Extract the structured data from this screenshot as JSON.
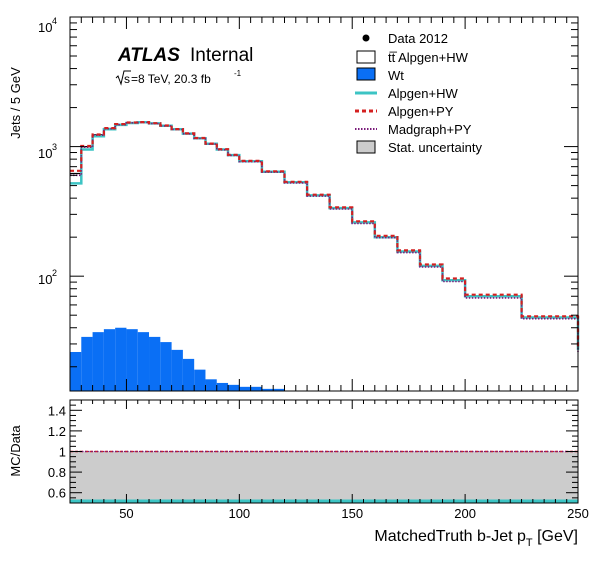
{
  "chart_data": [
    {
      "type": "histogram",
      "panel": "main",
      "ylabel": "Jets / 5 GeV",
      "xlim": [
        25,
        250
      ],
      "ylim": [
        13,
        10000
      ],
      "yscale": "log",
      "y_ticklabels": [
        "10",
        "10",
        "10"
      ],
      "y_tick_exponents": [
        "2",
        "3",
        "4"
      ],
      "x_edges": [
        25,
        30,
        35,
        40,
        45,
        50,
        55,
        60,
        65,
        70,
        75,
        80,
        85,
        90,
        95,
        100,
        110,
        120,
        130,
        140,
        150,
        160,
        170,
        180,
        190,
        200,
        225,
        250
      ],
      "annotations": {
        "atlas_label": "ATLAS",
        "atlas_status": "Internal",
        "energy_prefix": "s",
        "energy_text": "=8 TeV, 20.3 fb",
        "lumi_exponent": "-1"
      },
      "legend": {
        "placement": "top-right",
        "entries": [
          {
            "label": "Data 2012",
            "style": "marker"
          },
          {
            "label": "tt̅ Alpgen+HW",
            "style": "box-white"
          },
          {
            "label": "Wt",
            "style": "box-blue"
          },
          {
            "label": "Alpgen+HW",
            "style": "line-solid-cyan"
          },
          {
            "label": "Alpgen+PY",
            "style": "line-dashed-red"
          },
          {
            "label": "Madgraph+PY",
            "style": "line-dotted-purple"
          },
          {
            "label": "Stat. uncertainty",
            "style": "box-gray"
          }
        ]
      },
      "series": [
        {
          "name": "tt̅ Alpgen+HW",
          "color": "#000000",
          "values": [
            620,
            1000,
            1230,
            1380,
            1480,
            1530,
            1540,
            1510,
            1450,
            1360,
            1260,
            1160,
            1050,
            950,
            860,
            770,
            640,
            530,
            420,
            335,
            260,
            200,
            155,
            120,
            93,
            70,
            48,
            27
          ]
        },
        {
          "name": "Wt",
          "color": "#0a6ff5",
          "values": [
            26,
            34,
            37,
            39,
            40,
            39,
            37,
            34,
            31,
            27,
            23,
            19,
            16,
            15,
            14.5,
            14,
            13.5,
            0,
            0,
            0,
            0,
            0,
            0,
            0,
            0,
            0,
            0,
            0
          ]
        },
        {
          "name": "Alpgen+HW",
          "color": "#3cc4c4",
          "values": [
            520,
            950,
            1200,
            1360,
            1470,
            1520,
            1540,
            1510,
            1450,
            1360,
            1260,
            1160,
            1050,
            950,
            860,
            770,
            640,
            530,
            420,
            335,
            260,
            200,
            155,
            120,
            93,
            70,
            48,
            27
          ]
        },
        {
          "name": "Alpgen+PY",
          "color": "#d42020",
          "values": [
            650,
            1010,
            1240,
            1390,
            1490,
            1535,
            1545,
            1515,
            1455,
            1365,
            1265,
            1165,
            1055,
            955,
            865,
            775,
            645,
            535,
            425,
            340,
            265,
            205,
            158,
            123,
            96,
            72,
            49,
            28
          ]
        },
        {
          "name": "Madgraph+PY",
          "color": "#7a1a7a",
          "values": [
            600,
            990,
            1225,
            1375,
            1475,
            1525,
            1535,
            1505,
            1445,
            1355,
            1255,
            1155,
            1045,
            945,
            855,
            765,
            635,
            525,
            415,
            330,
            255,
            198,
            152,
            118,
            91,
            68,
            47,
            26
          ]
        }
      ]
    },
    {
      "type": "ratio",
      "panel": "ratio",
      "ylabel": "MC/Data",
      "xlabel_prefix": "MatchedTruth b-Jet p",
      "xlabel_sub": "T",
      "xlabel_suffix": " [GeV]",
      "xlim": [
        25,
        250
      ],
      "ylim": [
        0.5,
        1.5
      ],
      "x_ticklabels": [
        "50",
        "100",
        "150",
        "200",
        "250"
      ],
      "y_ticklabels": [
        "0.6",
        "0.8",
        "1",
        "1.2",
        "1.4"
      ],
      "band": {
        "name": "Stat. uncertainty",
        "color": "#cccccc",
        "low": 0.5,
        "high": 1.0
      },
      "series": [
        {
          "name": "Alpgen+HW",
          "color": "#3cc4c4",
          "value": 0.52
        },
        {
          "name": "Alpgen+PY",
          "color": "#d42020",
          "value": 1.0
        },
        {
          "name": "Madgraph+PY",
          "color": "#7a1a7a",
          "value": 1.0
        }
      ]
    }
  ]
}
